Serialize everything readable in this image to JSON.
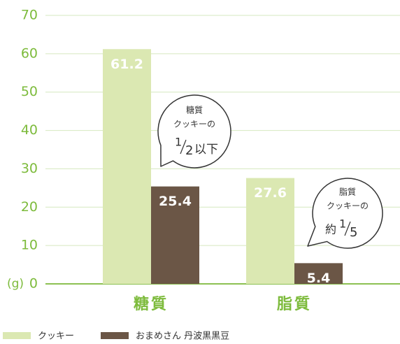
{
  "chart_data": {
    "type": "bar",
    "y_label": "(g)",
    "categories": [
      "糖質",
      "脂質"
    ],
    "series": [
      {
        "name": "クッキー",
        "color": "#dbe8b2",
        "values": [
          61.2,
          27.6
        ]
      },
      {
        "name": "おまめさん 丹波黒黒豆",
        "color": "#6b5646",
        "values": [
          25.4,
          5.4
        ]
      }
    ],
    "ylim": [
      0,
      70
    ],
    "yticks": [
      0,
      10,
      20,
      30,
      40,
      50,
      60,
      70
    ],
    "grid": true,
    "annotations": [
      {
        "lines": [
          "糖質",
          "クッキーの"
        ],
        "prefix": "",
        "numerator": "1",
        "denominator": "2",
        "suffix": "以下"
      },
      {
        "lines": [
          "脂質",
          "クッキーの"
        ],
        "prefix": "約",
        "numerator": "1",
        "denominator": "5",
        "suffix": ""
      }
    ]
  }
}
